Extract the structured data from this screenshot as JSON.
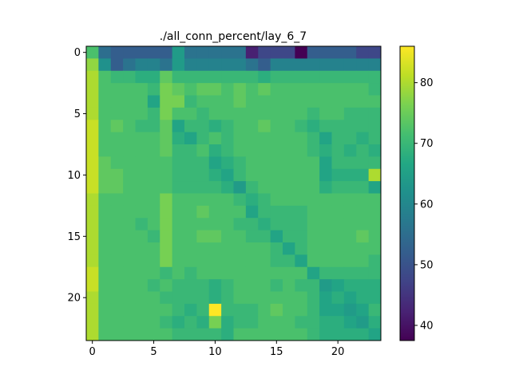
{
  "chart_data": {
    "type": "heatmap",
    "title": "./all_conn_percent/lay_6_7",
    "xlabel": "",
    "ylabel": "",
    "rows": 24,
    "cols": 24,
    "x_ticks": [
      0,
      5,
      10,
      15,
      20
    ],
    "y_ticks": [
      0,
      5,
      10,
      15,
      20
    ],
    "colormap": "viridis",
    "colorbar": {
      "min": 37.5,
      "max": 86,
      "ticks": [
        40,
        50,
        60,
        70,
        80
      ]
    },
    "values": [
      [
        72,
        55,
        52,
        52,
        52,
        52,
        52,
        64,
        56,
        56,
        56,
        56,
        56,
        42,
        48,
        48,
        48,
        37.5,
        52,
        52,
        52,
        52,
        48,
        48
      ],
      [
        78,
        62,
        52,
        56,
        59,
        59,
        56,
        64,
        59,
        59,
        59,
        59,
        59,
        56,
        52,
        59,
        59,
        59,
        59,
        59,
        59,
        59,
        59,
        59
      ],
      [
        80,
        72,
        70,
        70,
        68,
        68,
        74,
        70,
        70,
        70,
        70,
        70,
        70,
        70,
        68,
        70,
        70,
        70,
        70,
        70,
        70,
        70,
        70,
        70
      ],
      [
        80,
        72,
        72,
        72,
        72,
        70,
        76,
        74,
        72,
        74,
        74,
        72,
        74,
        72,
        74,
        72,
        72,
        72,
        72,
        72,
        72,
        72,
        72,
        70
      ],
      [
        80,
        72,
        72,
        72,
        72,
        66,
        76,
        76,
        70,
        72,
        72,
        72,
        74,
        72,
        72,
        72,
        72,
        72,
        72,
        72,
        72,
        72,
        72,
        72
      ],
      [
        80,
        72,
        72,
        72,
        72,
        70,
        76,
        72,
        72,
        70,
        72,
        72,
        72,
        72,
        72,
        72,
        72,
        72,
        70,
        72,
        72,
        70,
        70,
        70
      ],
      [
        82,
        72,
        74,
        72,
        70,
        70,
        74,
        66,
        70,
        70,
        68,
        70,
        72,
        72,
        74,
        72,
        72,
        70,
        68,
        70,
        70,
        70,
        70,
        70
      ],
      [
        82,
        72,
        72,
        72,
        72,
        72,
        74,
        68,
        66,
        70,
        72,
        70,
        72,
        72,
        72,
        72,
        72,
        72,
        70,
        66,
        70,
        70,
        68,
        70
      ],
      [
        82,
        72,
        72,
        72,
        72,
        72,
        74,
        70,
        70,
        72,
        68,
        70,
        72,
        72,
        72,
        72,
        72,
        72,
        70,
        68,
        70,
        68,
        70,
        68
      ],
      [
        82,
        74,
        72,
        72,
        72,
        72,
        72,
        70,
        70,
        70,
        66,
        68,
        70,
        72,
        72,
        72,
        72,
        72,
        72,
        66,
        70,
        70,
        70,
        70
      ],
      [
        82,
        74,
        74,
        72,
        72,
        72,
        72,
        70,
        70,
        70,
        68,
        66,
        70,
        72,
        72,
        72,
        72,
        72,
        72,
        66,
        68,
        68,
        68,
        80
      ],
      [
        82,
        74,
        74,
        72,
        72,
        72,
        72,
        70,
        70,
        70,
        70,
        68,
        64,
        70,
        72,
        72,
        72,
        72,
        72,
        68,
        70,
        70,
        70,
        66
      ],
      [
        80,
        72,
        72,
        72,
        72,
        72,
        76,
        72,
        72,
        72,
        72,
        72,
        70,
        68,
        70,
        72,
        72,
        72,
        72,
        72,
        72,
        72,
        72,
        72
      ],
      [
        80,
        72,
        72,
        72,
        72,
        72,
        76,
        72,
        72,
        74,
        72,
        72,
        72,
        66,
        70,
        70,
        70,
        70,
        72,
        72,
        72,
        72,
        72,
        72
      ],
      [
        80,
        72,
        72,
        72,
        70,
        72,
        76,
        72,
        72,
        72,
        72,
        72,
        70,
        70,
        68,
        70,
        70,
        70,
        72,
        72,
        72,
        72,
        72,
        72
      ],
      [
        80,
        72,
        72,
        72,
        72,
        70,
        76,
        72,
        72,
        74,
        74,
        72,
        72,
        70,
        70,
        66,
        70,
        70,
        72,
        72,
        72,
        72,
        74,
        72
      ],
      [
        80,
        72,
        72,
        72,
        72,
        72,
        76,
        72,
        72,
        72,
        72,
        72,
        72,
        72,
        72,
        70,
        66,
        70,
        72,
        72,
        72,
        72,
        72,
        72
      ],
      [
        80,
        72,
        72,
        72,
        72,
        72,
        76,
        72,
        72,
        72,
        72,
        72,
        72,
        72,
        72,
        70,
        70,
        66,
        72,
        72,
        72,
        72,
        72,
        70
      ],
      [
        82,
        72,
        72,
        72,
        72,
        72,
        70,
        72,
        70,
        72,
        72,
        72,
        72,
        72,
        72,
        72,
        72,
        72,
        66,
        70,
        70,
        70,
        70,
        70
      ],
      [
        82,
        72,
        72,
        72,
        72,
        70,
        72,
        70,
        70,
        70,
        68,
        70,
        72,
        72,
        72,
        70,
        72,
        70,
        70,
        64,
        66,
        68,
        68,
        68
      ],
      [
        80,
        72,
        72,
        72,
        72,
        72,
        70,
        70,
        70,
        70,
        68,
        70,
        72,
        72,
        72,
        72,
        72,
        72,
        70,
        66,
        68,
        66,
        68,
        68
      ],
      [
        80,
        72,
        72,
        72,
        72,
        72,
        72,
        70,
        68,
        70,
        86,
        70,
        70,
        70,
        72,
        74,
        72,
        72,
        70,
        66,
        66,
        64,
        66,
        70
      ],
      [
        80,
        72,
        72,
        72,
        72,
        72,
        70,
        68,
        70,
        68,
        76,
        68,
        70,
        70,
        72,
        72,
        72,
        70,
        70,
        68,
        68,
        66,
        64,
        68
      ],
      [
        80,
        72,
        72,
        72,
        72,
        72,
        72,
        70,
        70,
        70,
        70,
        68,
        72,
        72,
        72,
        72,
        72,
        72,
        70,
        68,
        68,
        68,
        68,
        66
      ]
    ]
  }
}
